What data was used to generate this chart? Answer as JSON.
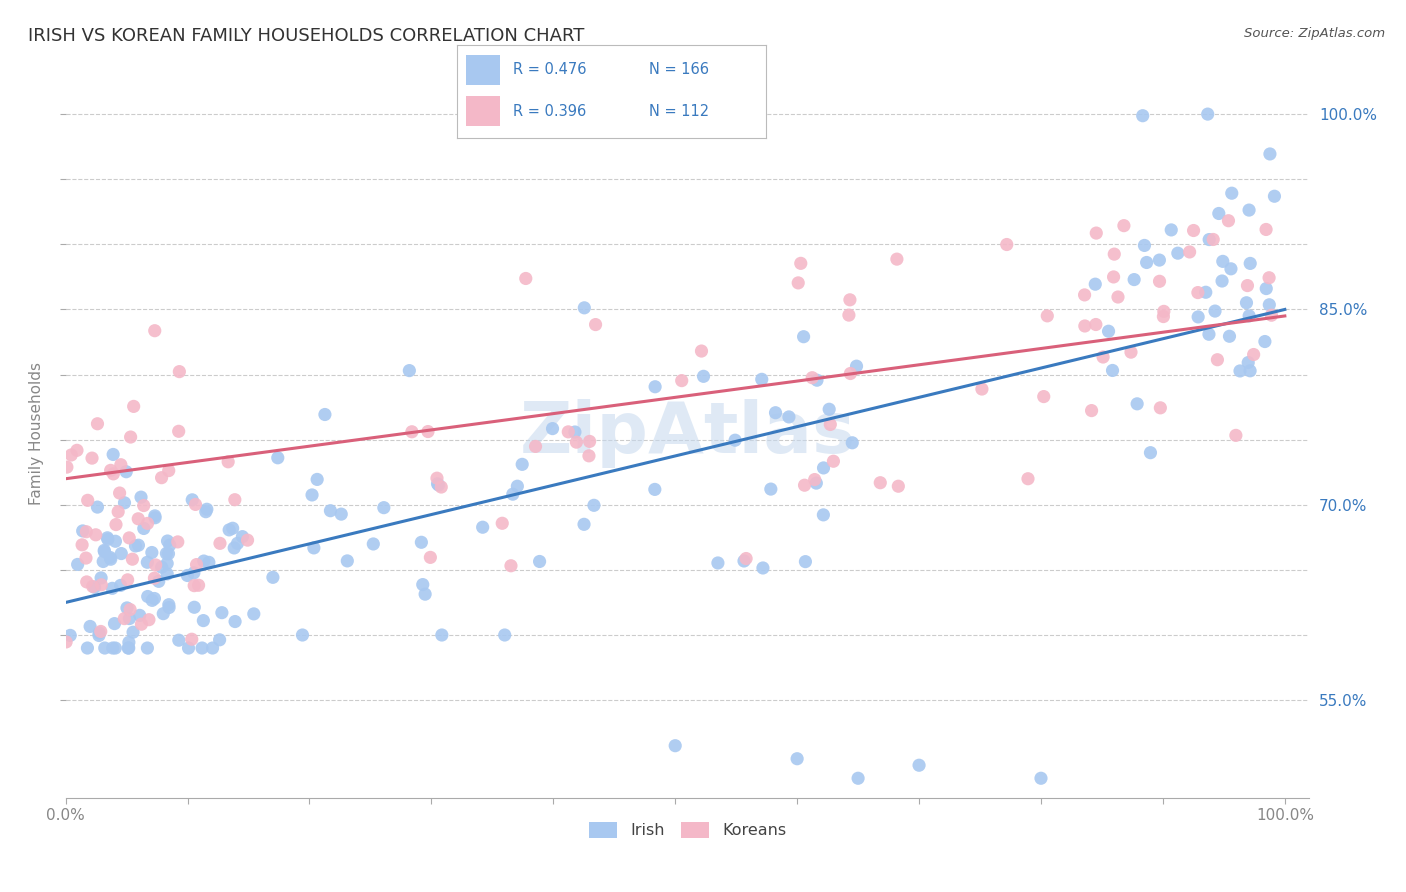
{
  "title": "IRISH VS KOREAN FAMILY HOUSEHOLDS CORRELATION CHART",
  "source": "Source: ZipAtlas.com",
  "ylabel": "Family Households",
  "irish_color": "#a8c8f0",
  "korean_color": "#f4b8c8",
  "irish_line_color": "#3a7abf",
  "korean_line_color": "#d9607a",
  "right_label_color": "#3a7abf",
  "background_color": "#ffffff",
  "grid_color": "#cccccc",
  "title_color": "#333333",
  "tick_color": "#888888",
  "watermark_text": "ZipAtlas",
  "legend_r_color": "#3a7abf",
  "legend_n_color": "#3a7abf",
  "y_ticks": [
    0.55,
    0.6,
    0.65,
    0.7,
    0.75,
    0.8,
    0.85,
    0.9,
    0.95,
    1.0
  ],
  "y_right_labels": [
    "55.0%",
    "",
    "",
    "70.0%",
    "",
    "",
    "85.0%",
    "",
    "",
    "100.0%"
  ]
}
